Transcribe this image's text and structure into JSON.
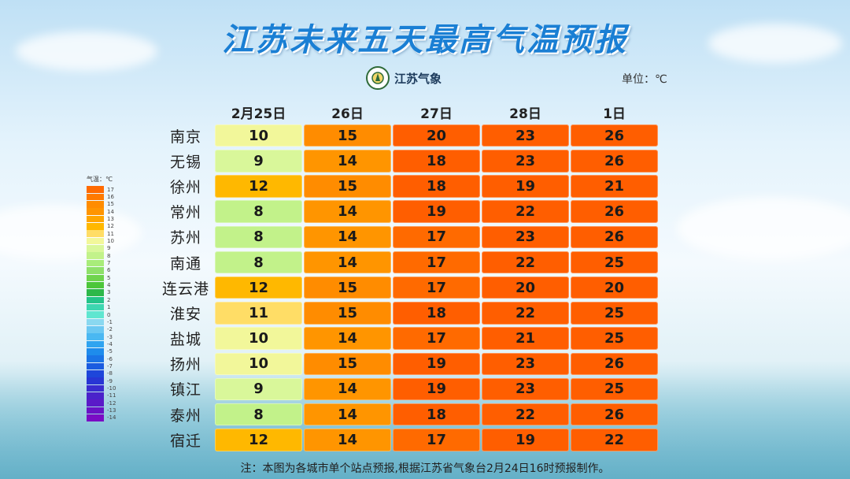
{
  "title": "江苏未来五天最高气温预报",
  "logo_text": "江苏气象",
  "unit": "单位：℃",
  "note": "注：本图为各城市单个站点预报,根据江苏省气象台2月24日16时预报制作。",
  "legend_title": "气温：℃",
  "chart_data": {
    "type": "table",
    "title": "江苏未来五天最高气温预报",
    "unit": "℃",
    "columns": [
      "2月25日",
      "26日",
      "27日",
      "28日",
      "1日"
    ],
    "rows": [
      {
        "city": "南京",
        "values": [
          10,
          15,
          20,
          23,
          26
        ]
      },
      {
        "city": "无锡",
        "values": [
          9,
          14,
          18,
          23,
          26
        ]
      },
      {
        "city": "徐州",
        "values": [
          12,
          15,
          18,
          19,
          21
        ]
      },
      {
        "city": "常州",
        "values": [
          8,
          14,
          19,
          22,
          26
        ]
      },
      {
        "city": "苏州",
        "values": [
          8,
          14,
          17,
          23,
          26
        ]
      },
      {
        "city": "南通",
        "values": [
          8,
          14,
          17,
          22,
          25
        ]
      },
      {
        "city": "连云港",
        "values": [
          12,
          15,
          17,
          20,
          20
        ]
      },
      {
        "city": "淮安",
        "values": [
          11,
          15,
          18,
          22,
          25
        ]
      },
      {
        "city": "盐城",
        "values": [
          10,
          14,
          17,
          21,
          25
        ]
      },
      {
        "city": "扬州",
        "values": [
          10,
          15,
          19,
          23,
          26
        ]
      },
      {
        "city": "镇江",
        "values": [
          9,
          14,
          19,
          23,
          25
        ]
      },
      {
        "city": "泰州",
        "values": [
          8,
          14,
          18,
          22,
          26
        ]
      },
      {
        "city": "宿迁",
        "values": [
          12,
          14,
          17,
          19,
          22
        ]
      }
    ],
    "legend": [
      {
        "label": "17",
        "color": "#ff6a00"
      },
      {
        "label": "16",
        "color": "#ff7a00"
      },
      {
        "label": "15",
        "color": "#ff8c00"
      },
      {
        "label": "14",
        "color": "#ff9500"
      },
      {
        "label": "13",
        "color": "#ffa600"
      },
      {
        "label": "12",
        "color": "#ffb800"
      },
      {
        "label": "11",
        "color": "#ffdd66"
      },
      {
        "label": "10",
        "color": "#f2f79a"
      },
      {
        "label": "9",
        "color": "#d9f79a"
      },
      {
        "label": "8",
        "color": "#c2f28a"
      },
      {
        "label": "7",
        "color": "#a8ec7a"
      },
      {
        "label": "6",
        "color": "#8ee06a"
      },
      {
        "label": "5",
        "color": "#6fd44e"
      },
      {
        "label": "4",
        "color": "#4cc63a"
      },
      {
        "label": "3",
        "color": "#2db84a"
      },
      {
        "label": "2",
        "color": "#24c48a"
      },
      {
        "label": "1",
        "color": "#3dd6b0"
      },
      {
        "label": "0",
        "color": "#5fe6d0"
      },
      {
        "label": "-1",
        "color": "#8ad8f0"
      },
      {
        "label": "-2",
        "color": "#6cc8f2"
      },
      {
        "label": "-3",
        "color": "#4ab8f2"
      },
      {
        "label": "-4",
        "color": "#2fa4f0"
      },
      {
        "label": "-5",
        "color": "#1e8cec"
      },
      {
        "label": "-6",
        "color": "#1a74e6"
      },
      {
        "label": "-7",
        "color": "#1a5ce0"
      },
      {
        "label": "-8",
        "color": "#1e46da"
      },
      {
        "label": "-9",
        "color": "#2836d4"
      },
      {
        "label": "-10",
        "color": "#3a2ccf"
      },
      {
        "label": "-11",
        "color": "#4a22ca"
      },
      {
        "label": "-12",
        "color": "#5a1ac8"
      },
      {
        "label": "-13",
        "color": "#6a12c6"
      },
      {
        "label": "-14",
        "color": "#7a0cc4"
      }
    ]
  }
}
